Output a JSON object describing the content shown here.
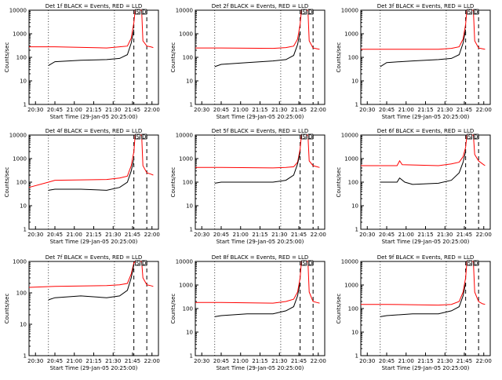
{
  "figure": {
    "x_tick_labels": [
      "20:30",
      "20:45",
      "21:00",
      "21:15",
      "21:30",
      "21:45",
      "22:00"
    ],
    "y_tick_labels": [
      "1",
      "10",
      "100",
      "1000",
      "10000"
    ],
    "xlabel": "Start Time (29-Jan-05 20:25:00)",
    "ylabel": "Counts/sec",
    "marker_labels": [
      "S",
      "D"
    ],
    "colors": {
      "events": "#000000",
      "lld": "#ff0000",
      "axes": "#000000"
    }
  },
  "chart_data": [
    {
      "type": "line",
      "title": "Det 1f BLACK = Events, RED = LLD",
      "xlabel": "Start Time (29-Jan-05 20:25:00)",
      "ylabel": "Counts/sec",
      "x_unit": "minutes after 20:25",
      "xlim": [
        0,
        100
      ],
      "ylim": [
        1,
        10000
      ],
      "y_scale": "log",
      "series": [
        {
          "key": "lld",
          "x": [
            0,
            20,
            60,
            70,
            76,
            79,
            81,
            82,
            84,
            87,
            88,
            91,
            94,
            96
          ],
          "y": [
            280,
            280,
            250,
            280,
            300,
            650,
            3000,
            10000,
            10000,
            10000,
            500,
            300,
            280,
            260
          ]
        },
        {
          "key": "events",
          "x": [
            15,
            20,
            40,
            60,
            70,
            76,
            79,
            81
          ],
          "y": [
            45,
            65,
            75,
            80,
            90,
            130,
            400,
            1500
          ]
        }
      ],
      "vlines": [
        {
          "x": 15,
          "style": "dotted"
        },
        {
          "x": 66,
          "style": "dotted"
        },
        {
          "x": 81,
          "style": "dashed"
        },
        {
          "x": 91,
          "style": "dashed"
        }
      ],
      "markers": [
        {
          "x": 84,
          "label": "S"
        },
        {
          "x": 89,
          "label": "D"
        }
      ]
    },
    {
      "type": "line",
      "title": "Det 2f BLACK = Events, RED = LLD",
      "xlabel": "Start Time (29-Jan-05 20:25:00)",
      "ylabel": "Counts/sec",
      "x_unit": "minutes after 20:25",
      "xlim": [
        0,
        100
      ],
      "ylim": [
        1,
        10000
      ],
      "y_scale": "log",
      "series": [
        {
          "key": "lld",
          "x": [
            0,
            20,
            60,
            70,
            76,
            79,
            81,
            82,
            84,
            87,
            88,
            91,
            94,
            96
          ],
          "y": [
            250,
            250,
            240,
            260,
            300,
            600,
            2500,
            10000,
            10000,
            10000,
            500,
            250,
            230,
            220
          ]
        },
        {
          "key": "events",
          "x": [
            15,
            20,
            40,
            60,
            70,
            76,
            79,
            81
          ],
          "y": [
            40,
            50,
            60,
            70,
            80,
            120,
            350,
            1200
          ]
        }
      ],
      "vlines": [
        {
          "x": 15,
          "style": "dotted"
        },
        {
          "x": 66,
          "style": "dotted"
        },
        {
          "x": 81,
          "style": "dashed"
        },
        {
          "x": 91,
          "style": "dashed"
        }
      ],
      "markers": [
        {
          "x": 84,
          "label": "S"
        },
        {
          "x": 89,
          "label": "D"
        }
      ]
    },
    {
      "type": "line",
      "title": "Det 3f BLACK = Events, RED = LLD",
      "xlabel": "Start Time (29-Jan-05 20:25:00)",
      "ylabel": "Counts/sec",
      "x_unit": "minutes after 20:25",
      "xlim": [
        0,
        100
      ],
      "ylim": [
        1,
        10000
      ],
      "y_scale": "log",
      "series": [
        {
          "key": "lld",
          "x": [
            0,
            20,
            60,
            70,
            76,
            79,
            81,
            82,
            84,
            87,
            88,
            91,
            94,
            96
          ],
          "y": [
            220,
            220,
            220,
            240,
            280,
            600,
            2500,
            10000,
            10000,
            10000,
            500,
            250,
            230,
            220
          ]
        },
        {
          "key": "events",
          "x": [
            15,
            20,
            40,
            60,
            70,
            76,
            79,
            81
          ],
          "y": [
            40,
            60,
            70,
            80,
            90,
            130,
            400,
            1500
          ]
        }
      ],
      "vlines": [
        {
          "x": 15,
          "style": "dotted"
        },
        {
          "x": 66,
          "style": "dotted"
        },
        {
          "x": 81,
          "style": "dashed"
        },
        {
          "x": 91,
          "style": "dashed"
        }
      ],
      "markers": [
        {
          "x": 84,
          "label": "S"
        },
        {
          "x": 89,
          "label": "D"
        }
      ]
    },
    {
      "type": "line",
      "title": "Det 4f BLACK = Events, RED = LLD",
      "xlabel": "Start Time (29-Jan-05 20:25:00)",
      "ylabel": "Counts/sec",
      "x_unit": "minutes after 20:25",
      "xlim": [
        0,
        100
      ],
      "ylim": [
        1,
        10000
      ],
      "y_scale": "log",
      "series": [
        {
          "key": "lld",
          "x": [
            0,
            15,
            20,
            60,
            70,
            76,
            79,
            81,
            82,
            84,
            87,
            88,
            91,
            94,
            96
          ],
          "y": [
            60,
            100,
            120,
            130,
            150,
            180,
            500,
            2000,
            10000,
            10000,
            10000,
            500,
            250,
            220,
            200
          ]
        },
        {
          "key": "events",
          "x": [
            15,
            20,
            40,
            60,
            70,
            76,
            79,
            81
          ],
          "y": [
            45,
            50,
            50,
            45,
            60,
            100,
            300,
            1000
          ]
        }
      ],
      "vlines": [
        {
          "x": 15,
          "style": "dotted"
        },
        {
          "x": 66,
          "style": "dotted"
        },
        {
          "x": 81,
          "style": "dashed"
        },
        {
          "x": 91,
          "style": "dashed"
        }
      ],
      "markers": [
        {
          "x": 84,
          "label": "S"
        },
        {
          "x": 89,
          "label": "D"
        }
      ]
    },
    {
      "type": "line",
      "title": "Det 5f BLACK = Events, RED = LLD",
      "xlabel": "Start Time (29-Jan-05 20:25:00)",
      "ylabel": "Counts/sec",
      "x_unit": "minutes after 20:25",
      "xlim": [
        0,
        100
      ],
      "ylim": [
        1,
        10000
      ],
      "y_scale": "log",
      "series": [
        {
          "key": "lld",
          "x": [
            0,
            20,
            60,
            70,
            76,
            79,
            81,
            82,
            84,
            87,
            88,
            91,
            94,
            96
          ],
          "y": [
            420,
            420,
            400,
            420,
            450,
            700,
            2500,
            10000,
            10000,
            10000,
            800,
            500,
            450,
            420
          ]
        },
        {
          "key": "events",
          "x": [
            15,
            20,
            40,
            60,
            70,
            76,
            79,
            81
          ],
          "y": [
            90,
            100,
            100,
            100,
            120,
            200,
            600,
            1800
          ]
        }
      ],
      "vlines": [
        {
          "x": 15,
          "style": "dotted"
        },
        {
          "x": 66,
          "style": "dotted"
        },
        {
          "x": 81,
          "style": "dashed"
        },
        {
          "x": 91,
          "style": "dashed"
        }
      ],
      "markers": [
        {
          "x": 84,
          "label": "S"
        },
        {
          "x": 89,
          "label": "D"
        }
      ]
    },
    {
      "type": "line",
      "title": "Det 6f BLACK = Events, RED = LLD",
      "xlabel": "Start Time (29-Jan-05 20:25:00)",
      "ylabel": "Counts/sec",
      "x_unit": "minutes after 20:25",
      "xlim": [
        0,
        100
      ],
      "ylim": [
        1,
        10000
      ],
      "y_scale": "log",
      "series": [
        {
          "key": "lld",
          "x": [
            0,
            20,
            28,
            30,
            32,
            60,
            70,
            76,
            79,
            81,
            82,
            84,
            87,
            88,
            91,
            94,
            96
          ],
          "y": [
            500,
            500,
            500,
            800,
            550,
            500,
            600,
            700,
            1200,
            3000,
            10000,
            10000,
            10000,
            1500,
            800,
            600,
            500
          ]
        },
        {
          "key": "events",
          "x": [
            15,
            20,
            28,
            30,
            34,
            40,
            60,
            70,
            76,
            79,
            81
          ],
          "y": [
            100,
            100,
            100,
            150,
            100,
            80,
            90,
            120,
            250,
            700,
            2000
          ]
        }
      ],
      "vlines": [
        {
          "x": 15,
          "style": "dotted"
        },
        {
          "x": 66,
          "style": "dotted"
        },
        {
          "x": 81,
          "style": "dashed"
        },
        {
          "x": 91,
          "style": "dashed"
        }
      ],
      "markers": [
        {
          "x": 84,
          "label": "S"
        },
        {
          "x": 89,
          "label": "D"
        }
      ]
    },
    {
      "type": "line",
      "title": "Det 7f BLACK = Events, RED = LLD",
      "xlabel": "Start Time (29-Jan-05 20:25:00)",
      "ylabel": "Counts/sec",
      "x_unit": "minutes after 20:25",
      "xlim": [
        0,
        100
      ],
      "ylim": [
        1,
        1000
      ],
      "y_scale": "log",
      "series": [
        {
          "key": "lld",
          "x": [
            0,
            20,
            60,
            70,
            76,
            79,
            81,
            82,
            84,
            87,
            88,
            91,
            94,
            96
          ],
          "y": [
            150,
            160,
            170,
            180,
            200,
            400,
            900,
            1000,
            1000,
            1000,
            300,
            180,
            170,
            160
          ]
        },
        {
          "key": "events",
          "x": [
            15,
            20,
            40,
            60,
            70,
            76,
            79,
            81
          ],
          "y": [
            60,
            70,
            80,
            70,
            80,
            120,
            300,
            800
          ]
        }
      ],
      "vlines": [
        {
          "x": 15,
          "style": "dotted"
        },
        {
          "x": 66,
          "style": "dotted"
        },
        {
          "x": 81,
          "style": "dashed"
        },
        {
          "x": 91,
          "style": "dashed"
        }
      ],
      "markers": [
        {
          "x": 84,
          "label": "S"
        },
        {
          "x": 89,
          "label": "D"
        }
      ]
    },
    {
      "type": "line",
      "title": "Det 8f BLACK = Events, RED = LLD",
      "xlabel": "Start Time (29-Jan-05 20:25:00)",
      "ylabel": "Counts/sec",
      "x_unit": "minutes after 20:25",
      "xlim": [
        0,
        100
      ],
      "ylim": [
        1,
        10000
      ],
      "y_scale": "log",
      "series": [
        {
          "key": "lld",
          "x": [
            0,
            20,
            60,
            70,
            76,
            79,
            81,
            82,
            84,
            87,
            88,
            91,
            94,
            96
          ],
          "y": [
            180,
            180,
            170,
            200,
            250,
            500,
            2000,
            10000,
            10000,
            10000,
            500,
            200,
            180,
            170
          ]
        },
        {
          "key": "events",
          "x": [
            15,
            20,
            40,
            60,
            70,
            76,
            79,
            81
          ],
          "y": [
            45,
            50,
            60,
            60,
            80,
            120,
            350,
            1200
          ]
        }
      ],
      "vlines": [
        {
          "x": 15,
          "style": "dotted"
        },
        {
          "x": 66,
          "style": "dotted"
        },
        {
          "x": 81,
          "style": "dashed"
        },
        {
          "x": 91,
          "style": "dashed"
        }
      ],
      "markers": [
        {
          "x": 84,
          "label": "S"
        },
        {
          "x": 89,
          "label": "D"
        }
      ]
    },
    {
      "type": "line",
      "title": "Det 9f BLACK = Events, RED = LLD",
      "xlabel": "Start Time (29-Jan-05 20:25:00)",
      "ylabel": "Counts/sec",
      "x_unit": "minutes after 20:25",
      "xlim": [
        0,
        100
      ],
      "ylim": [
        1,
        10000
      ],
      "y_scale": "log",
      "series": [
        {
          "key": "lld",
          "x": [
            0,
            20,
            60,
            70,
            76,
            79,
            81,
            82,
            84,
            87,
            88,
            91,
            94,
            96
          ],
          "y": [
            150,
            150,
            140,
            150,
            200,
            500,
            2000,
            10000,
            10000,
            10000,
            500,
            200,
            160,
            150
          ]
        },
        {
          "key": "events",
          "x": [
            15,
            20,
            40,
            60,
            70,
            76,
            79,
            81
          ],
          "y": [
            45,
            50,
            60,
            60,
            80,
            120,
            350,
            1200
          ]
        }
      ],
      "vlines": [
        {
          "x": 15,
          "style": "dotted"
        },
        {
          "x": 66,
          "style": "dotted"
        },
        {
          "x": 81,
          "style": "dashed"
        },
        {
          "x": 91,
          "style": "dashed"
        }
      ],
      "markers": [
        {
          "x": 84,
          "label": "S"
        },
        {
          "x": 89,
          "label": "D"
        }
      ]
    }
  ]
}
